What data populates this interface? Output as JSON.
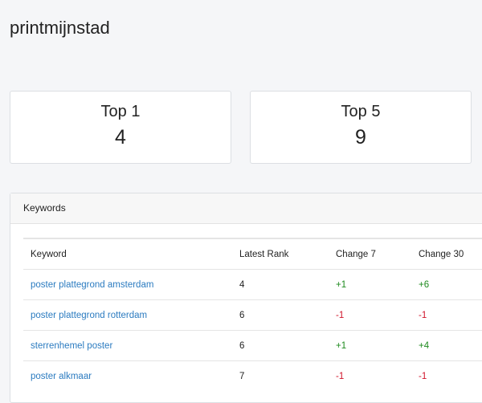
{
  "title": "printmijnstad",
  "cards": [
    {
      "label": "Top 1",
      "value": "4"
    },
    {
      "label": "Top 5",
      "value": "9"
    }
  ],
  "keywords": {
    "header": "Keywords",
    "columns": [
      "Keyword",
      "Latest Rank",
      "Change 7",
      "Change 30"
    ],
    "rows": [
      {
        "keyword": "poster plattegrond amsterdam",
        "rank": "4",
        "c7": "+1",
        "c30": "+6"
      },
      {
        "keyword": "poster plattegrond rotterdam",
        "rank": "6",
        "c7": "-1",
        "c30": "-1"
      },
      {
        "keyword": "sterrenhemel poster",
        "rank": "6",
        "c7": "+1",
        "c30": "+4"
      },
      {
        "keyword": "poster alkmaar",
        "rank": "7",
        "c7": "-1",
        "c30": "-1"
      }
    ]
  },
  "colors": {
    "positive": "#1e8a1e",
    "negative": "#d0142a",
    "link": "#2b7bc0"
  }
}
